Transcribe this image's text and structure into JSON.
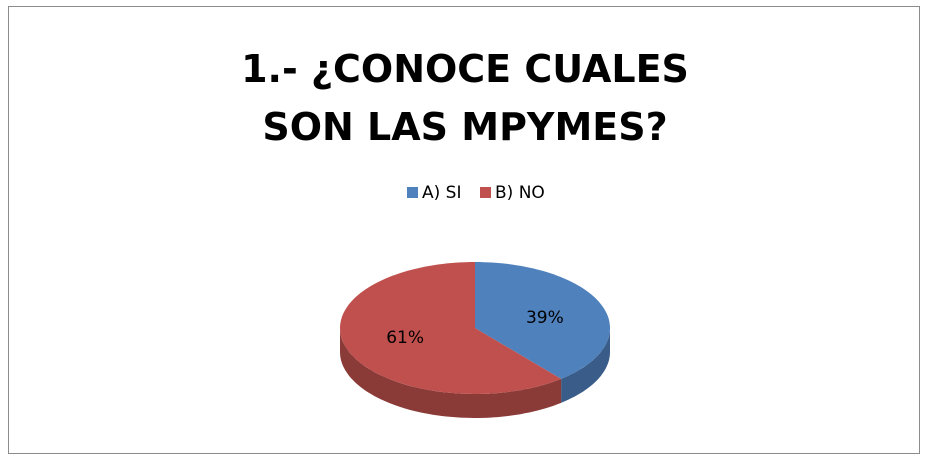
{
  "chart_data": {
    "type": "pie3d",
    "title": "1.- ¿CONOCE CUALES SON LAS MPYMES?",
    "categories": [
      "A) SI",
      "B) NO"
    ],
    "values": [
      39,
      61
    ],
    "value_labels": [
      "39%",
      "61%"
    ],
    "colors": [
      "#4f81bd",
      "#c0504d"
    ],
    "legend": "top"
  }
}
